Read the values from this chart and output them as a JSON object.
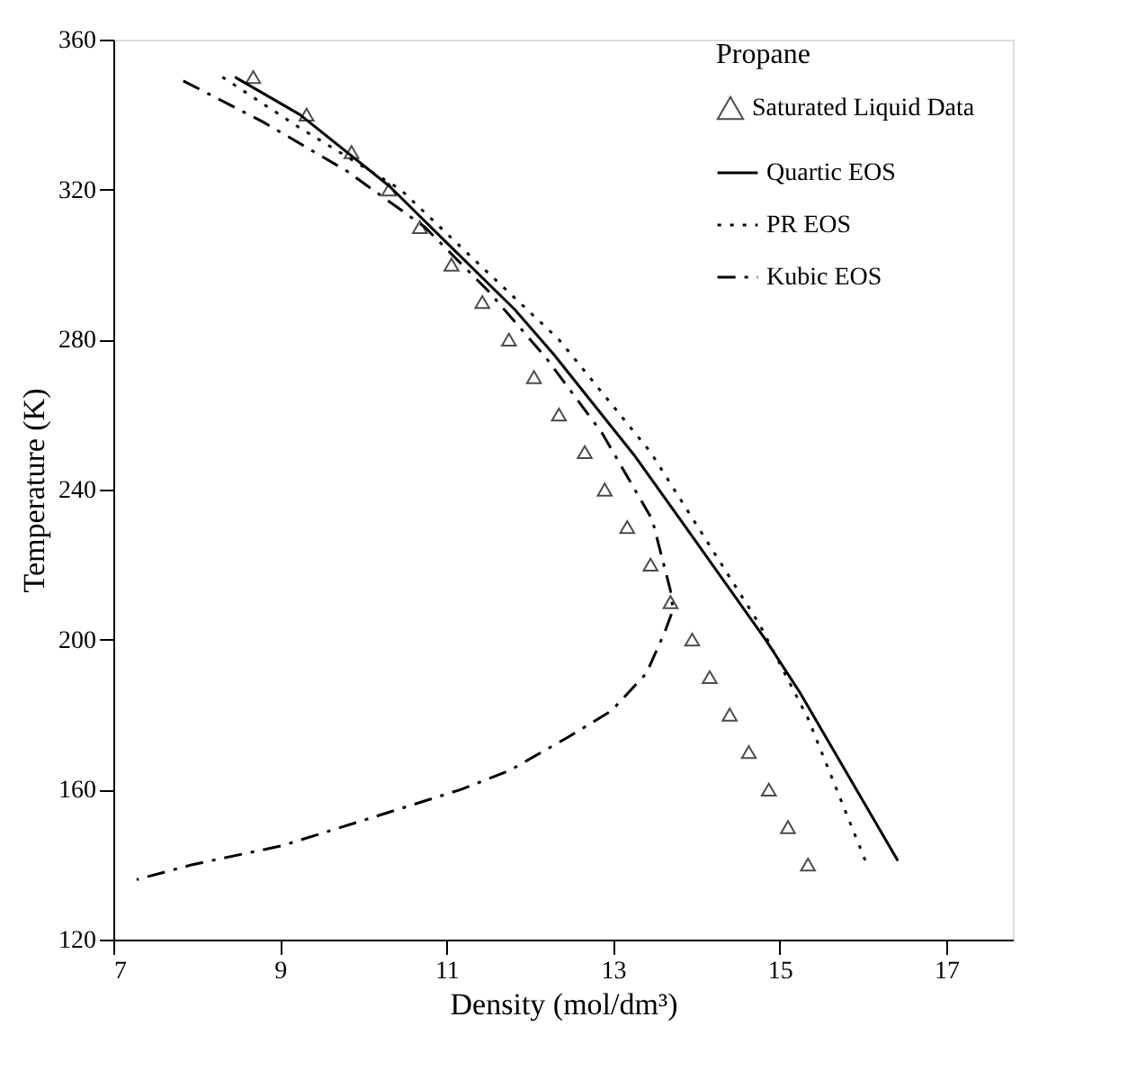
{
  "chart_data": {
    "type": "line",
    "legend_title": "Propane",
    "xlabel": "Density (mol/dm³)",
    "ylabel": "Temperature (K)",
    "xlim": [
      7,
      17.8
    ],
    "xticks": [
      7,
      9,
      11,
      13,
      15,
      17
    ],
    "ylim": [
      120,
      360
    ],
    "yticks": [
      120,
      160,
      200,
      240,
      280,
      320,
      360
    ],
    "grid": false,
    "legend": "top right",
    "series": [
      {
        "name": "Saturated Liquid Data",
        "type": "scatter",
        "marker": "triangle",
        "color": "#000000",
        "x": [
          8.68,
          9.32,
          9.86,
          10.31,
          10.68,
          11.06,
          11.43,
          11.75,
          12.05,
          12.35,
          12.66,
          12.9,
          13.17,
          13.45,
          13.69,
          13.95,
          14.16,
          14.4,
          14.63,
          14.87,
          15.1,
          15.34
        ],
        "values": [
          350,
          340,
          330,
          320,
          310,
          300,
          290,
          280,
          270,
          260,
          250,
          240,
          230,
          220,
          210,
          200,
          190,
          180,
          170,
          160,
          150,
          140
        ]
      },
      {
        "name": "Quartic EOS",
        "line_style": "solid",
        "color": "#000000",
        "x": [
          8.46,
          9.24,
          10.31,
          11.04,
          11.82,
          12.29,
          13.26,
          14.0,
          14.83,
          15.24,
          16.42
        ],
        "values": [
          350,
          340,
          321,
          305,
          288,
          276,
          249,
          226,
          200,
          186,
          141
        ]
      },
      {
        "name": "PR EOS",
        "line_style": "dotted",
        "color": "#000000",
        "x": [
          8.31,
          9.2,
          10.45,
          11.3,
          12.35,
          13.45,
          14.76,
          15.34,
          16.03
        ],
        "values": [
          350,
          337,
          320,
          302,
          280,
          250,
          204,
          179,
          141
        ]
      },
      {
        "name": "Kubic EOS",
        "line_style": "dashdot",
        "color": "#000000",
        "x": [
          7.84,
          8.8,
          9.8,
          10.74,
          11.5,
          12.2,
          12.87,
          13.47,
          13.69,
          13.72,
          13.62,
          13.4,
          12.98,
          12.46,
          11.75,
          11.17,
          10.03,
          9.02,
          7.95,
          7.28
        ],
        "values": [
          349,
          338,
          325,
          310,
          293,
          275,
          255,
          232,
          213,
          208,
          202,
          191,
          181,
          174,
          165,
          160,
          152,
          145,
          140,
          136
        ]
      }
    ]
  }
}
